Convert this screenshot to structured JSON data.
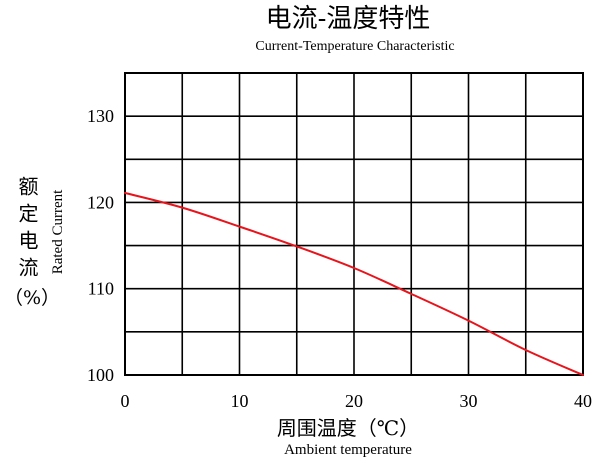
{
  "chart_data": {
    "type": "line",
    "title": "电流-温度特性",
    "subtitle": "Current-Temperature Characteristic",
    "xlabel": "周围温度（℃）",
    "xlabel_en": "Ambient temperature",
    "ylabel": "额定电流",
    "ylabel_unit": "（%）",
    "ylabel_en": "Rated Current",
    "xlim": [
      0,
      40
    ],
    "ylim": [
      100,
      135
    ],
    "xticks": [
      0,
      10,
      20,
      30,
      40
    ],
    "yticks": [
      100,
      110,
      120,
      130
    ],
    "grid": true,
    "series": [
      {
        "color": "#e8141c",
        "x": [
          0,
          5,
          10,
          15,
          20,
          25,
          30,
          35,
          40
        ],
        "y": [
          121.1,
          119.4,
          117.2,
          114.9,
          112.4,
          109.4,
          106.3,
          102.9,
          100.0
        ]
      }
    ]
  },
  "colors": {
    "grid": "#000000",
    "background": "#ffffff"
  }
}
